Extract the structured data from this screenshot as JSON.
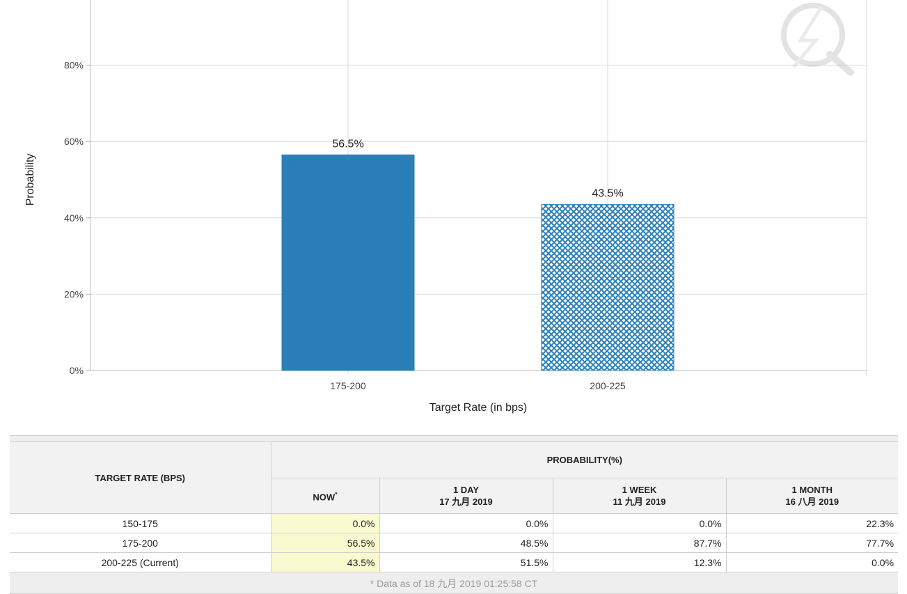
{
  "chart_data": {
    "type": "bar",
    "categories": [
      "175-200",
      "200-225"
    ],
    "values": [
      56.5,
      43.5
    ],
    "value_labels": [
      "56.5%",
      "43.5%"
    ],
    "bar_styles": [
      "solid",
      "crosshatch"
    ],
    "xlabel": "Target Rate (in bps)",
    "ylabel": "Probability",
    "ylim": [
      0,
      100
    ],
    "yticks": [
      0,
      20,
      40,
      60,
      80
    ],
    "ytick_labels": [
      "0%",
      "20%",
      "40%",
      "60%",
      "80%"
    ],
    "grid": true,
    "bar_color": "#2a7fb8"
  },
  "table": {
    "rate_header": "TARGET RATE (BPS)",
    "group_header": "PROBABILITY(%)",
    "columns": [
      {
        "title": "NOW",
        "marker": "*",
        "date": ""
      },
      {
        "title": "1 DAY",
        "date": "17 九月 2019"
      },
      {
        "title": "1 WEEK",
        "date": "11 九月 2019"
      },
      {
        "title": "1 MONTH",
        "date": "16 八月 2019"
      }
    ],
    "rows": [
      {
        "rate": "150-175",
        "values": [
          "0.0%",
          "0.0%",
          "0.0%",
          "22.3%"
        ]
      },
      {
        "rate": "175-200",
        "values": [
          "56.5%",
          "48.5%",
          "87.7%",
          "77.7%"
        ]
      },
      {
        "rate": "200-225 (Current)",
        "values": [
          "43.5%",
          "51.5%",
          "12.3%",
          "0.0%"
        ]
      }
    ],
    "footnote": "* Data as of 18 九月 2019 01:25:58 CT"
  }
}
